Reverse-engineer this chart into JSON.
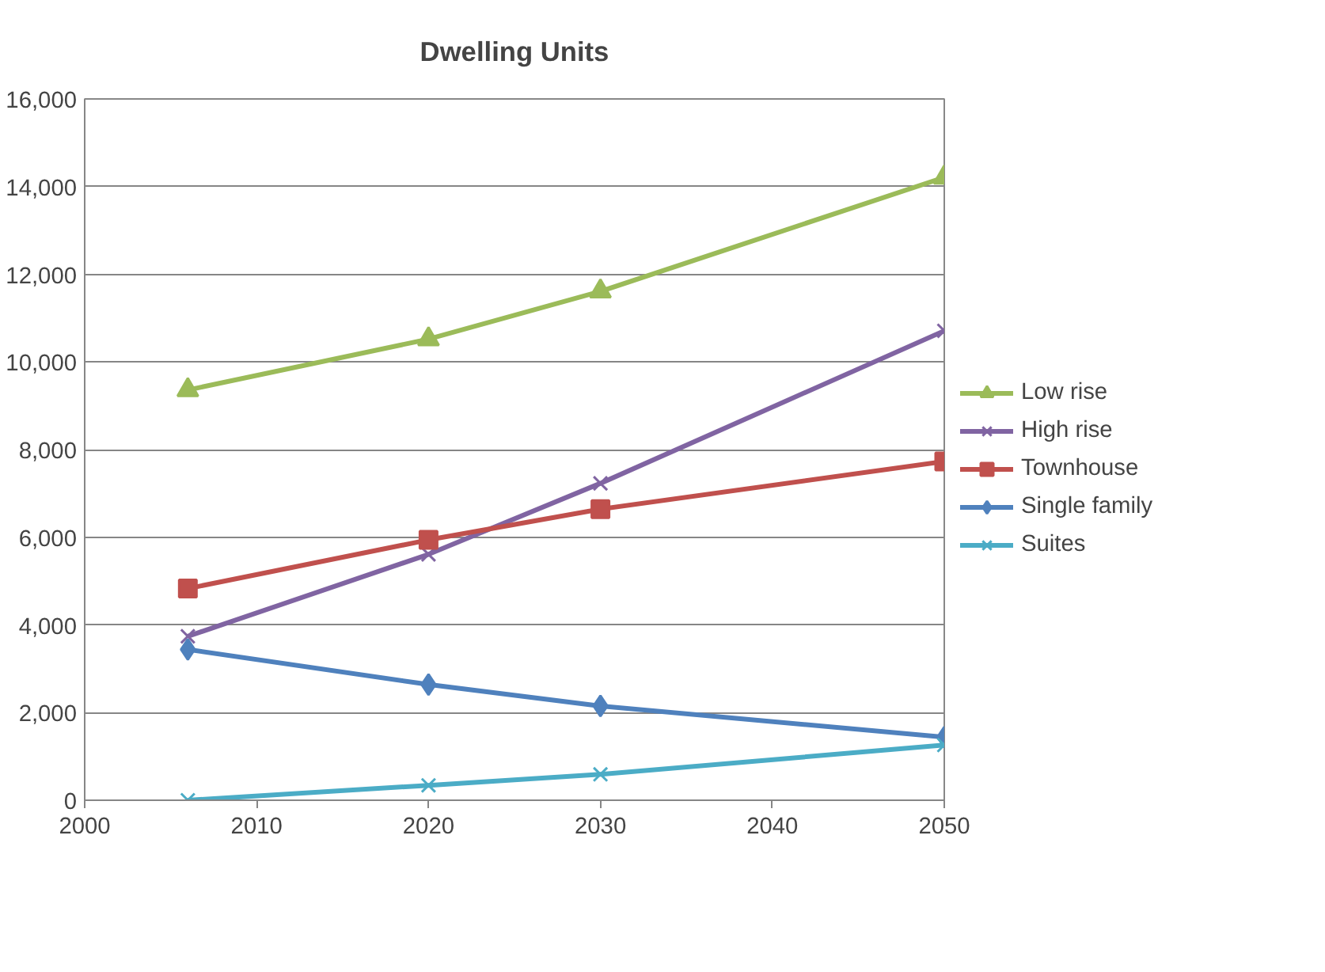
{
  "chart_data": {
    "type": "line",
    "title": "Dwelling Units",
    "x": [
      2006,
      2020,
      2030,
      2050
    ],
    "series": [
      {
        "name": "Low rise",
        "color": "#9bbb59",
        "marker": "triangle",
        "values": [
          9360,
          10520,
          11610,
          14210
        ]
      },
      {
        "name": "High rise",
        "color": "#8064a2",
        "marker": "cross",
        "values": [
          3740,
          5610,
          7230,
          10710
        ]
      },
      {
        "name": "Townhouse",
        "color": "#c0504d",
        "marker": "square",
        "values": [
          4830,
          5940,
          6640,
          7730
        ]
      },
      {
        "name": "Single family",
        "color": "#4f81bd",
        "marker": "diamond",
        "values": [
          3440,
          2640,
          2150,
          1440
        ]
      },
      {
        "name": "Suites",
        "color": "#4bacc6",
        "marker": "cross",
        "values": [
          0,
          340,
          590,
          1260
        ]
      }
    ],
    "xlim": [
      2000,
      2050
    ],
    "xticks": [
      2000,
      2010,
      2020,
      2030,
      2040,
      2050
    ],
    "ylim": [
      0,
      16000
    ],
    "yticks": [
      {
        "value": 0,
        "label": "0"
      },
      {
        "value": 2000,
        "label": "2,000"
      },
      {
        "value": 4000,
        "label": "4,000"
      },
      {
        "value": 6000,
        "label": "6,000"
      },
      {
        "value": 8000,
        "label": "8,000"
      },
      {
        "value": 10000,
        "label": "10,000"
      },
      {
        "value": 12000,
        "label": "12,000"
      },
      {
        "value": 14000,
        "label": "14,000"
      },
      {
        "value": 16000,
        "label": "16,000"
      }
    ],
    "grid": "y",
    "legend": "right"
  }
}
